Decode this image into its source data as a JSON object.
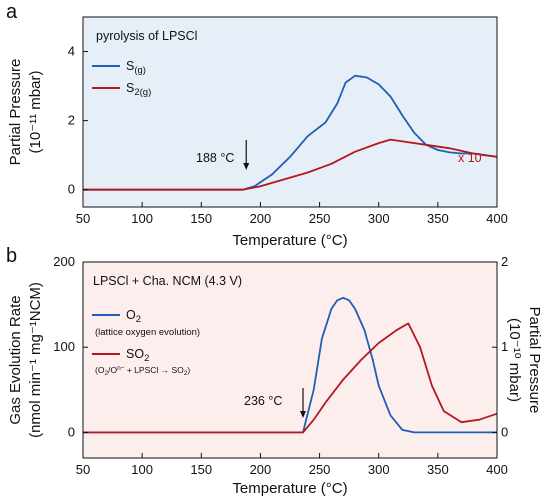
{
  "chart_data": [
    {
      "type": "line",
      "panel_label": "a",
      "annotation_title": "pyrolysis of LPSCl",
      "xlabel": "Temperature (°C)",
      "ylabel_line1": "Partial Pressure",
      "ylabel_line2": "(10⁻¹¹ mbar)",
      "xlim": [
        50,
        400
      ],
      "ylim": [
        -0.5,
        5.0
      ],
      "xticks": [
        50,
        100,
        150,
        200,
        250,
        300,
        350,
        400
      ],
      "yticks": [
        0,
        2,
        4
      ],
      "legend_position": "upper-left",
      "onset_label": "188 °C",
      "onset_x": 188,
      "scale_note": "x 10",
      "colors": {
        "s": "#1f5fb5",
        "s2": "#b3191e",
        "bg": "#e6eef8"
      },
      "series": [
        {
          "name": "S(g)",
          "name_main": "S",
          "name_sub": "(g)",
          "color": "#1f5fb5",
          "x": [
            50,
            100,
            150,
            185,
            195,
            210,
            225,
            240,
            255,
            265,
            272,
            280,
            290,
            300,
            310,
            320,
            330,
            340,
            350,
            360,
            370,
            380,
            390,
            400
          ],
          "y": [
            0,
            0,
            0,
            0,
            0.1,
            0.45,
            0.95,
            1.55,
            1.95,
            2.5,
            3.1,
            3.3,
            3.25,
            3.05,
            2.7,
            2.15,
            1.65,
            1.3,
            1.15,
            1.08,
            1.05,
            1.05,
            1.0,
            0.95
          ]
        },
        {
          "name": "S2(g)",
          "name_main": "S",
          "name_sub": "2(g)",
          "color": "#b3191e",
          "x": [
            50,
            100,
            150,
            185,
            200,
            220,
            240,
            260,
            280,
            300,
            310,
            320,
            340,
            360,
            380,
            400
          ],
          "y": [
            0,
            0,
            0,
            0,
            0.1,
            0.3,
            0.5,
            0.75,
            1.1,
            1.35,
            1.45,
            1.4,
            1.3,
            1.2,
            1.05,
            0.95
          ]
        }
      ]
    },
    {
      "type": "line",
      "panel_label": "b",
      "annotation_title": "LPSCl + Cha. NCM (4.3 V)",
      "xlabel": "Temperature (°C)",
      "ylabel_left_line1": "Gas Evolution Rate",
      "ylabel_left_line2": "(nmol min⁻¹ mg⁻¹NCM)",
      "ylabel_right_line1": "Partial Pressure",
      "ylabel_right_line2": "(10⁻¹⁰ mbar)",
      "xlim": [
        50,
        400
      ],
      "ylim_left": [
        -30,
        200
      ],
      "ylim_right": [
        -0.3,
        2.0
      ],
      "xticks": [
        50,
        100,
        150,
        200,
        250,
        300,
        350,
        400
      ],
      "yticks_left": [
        0,
        100,
        200
      ],
      "yticks_right": [
        0,
        1,
        2
      ],
      "onset_label": "236 °C",
      "onset_x": 236,
      "colors": {
        "o2": "#1f5fb5",
        "so2": "#b3191e",
        "bg": "#fdeeee"
      },
      "series": [
        {
          "name": "O2",
          "name_main": "O",
          "name_sub": "2",
          "note": "(lattice oxygen evolution)",
          "color": "#1f5fb5",
          "axis": "left",
          "x": [
            50,
            100,
            150,
            200,
            236,
            245,
            252,
            260,
            265,
            270,
            275,
            280,
            288,
            295,
            300,
            310,
            320,
            330,
            350,
            380,
            400
          ],
          "y": [
            0,
            0,
            0,
            0,
            0,
            50,
            110,
            145,
            155,
            158,
            155,
            145,
            120,
            85,
            55,
            20,
            3,
            0,
            0,
            0,
            0
          ]
        },
        {
          "name": "SO2",
          "name_main": "SO",
          "name_sub": "2",
          "note_parts": [
            "(O",
            "2",
            "/O",
            "n−",
            " + LPSCl → SO",
            "2",
            ")"
          ],
          "color": "#b3191e",
          "axis": "right",
          "x": [
            50,
            100,
            150,
            200,
            236,
            245,
            255,
            270,
            285,
            300,
            315,
            325,
            335,
            345,
            355,
            370,
            385,
            400
          ],
          "y": [
            0,
            0,
            0,
            0,
            0,
            0.15,
            0.35,
            0.62,
            0.85,
            1.05,
            1.2,
            1.28,
            1.0,
            0.55,
            0.25,
            0.12,
            0.15,
            0.22
          ]
        }
      ]
    }
  ]
}
